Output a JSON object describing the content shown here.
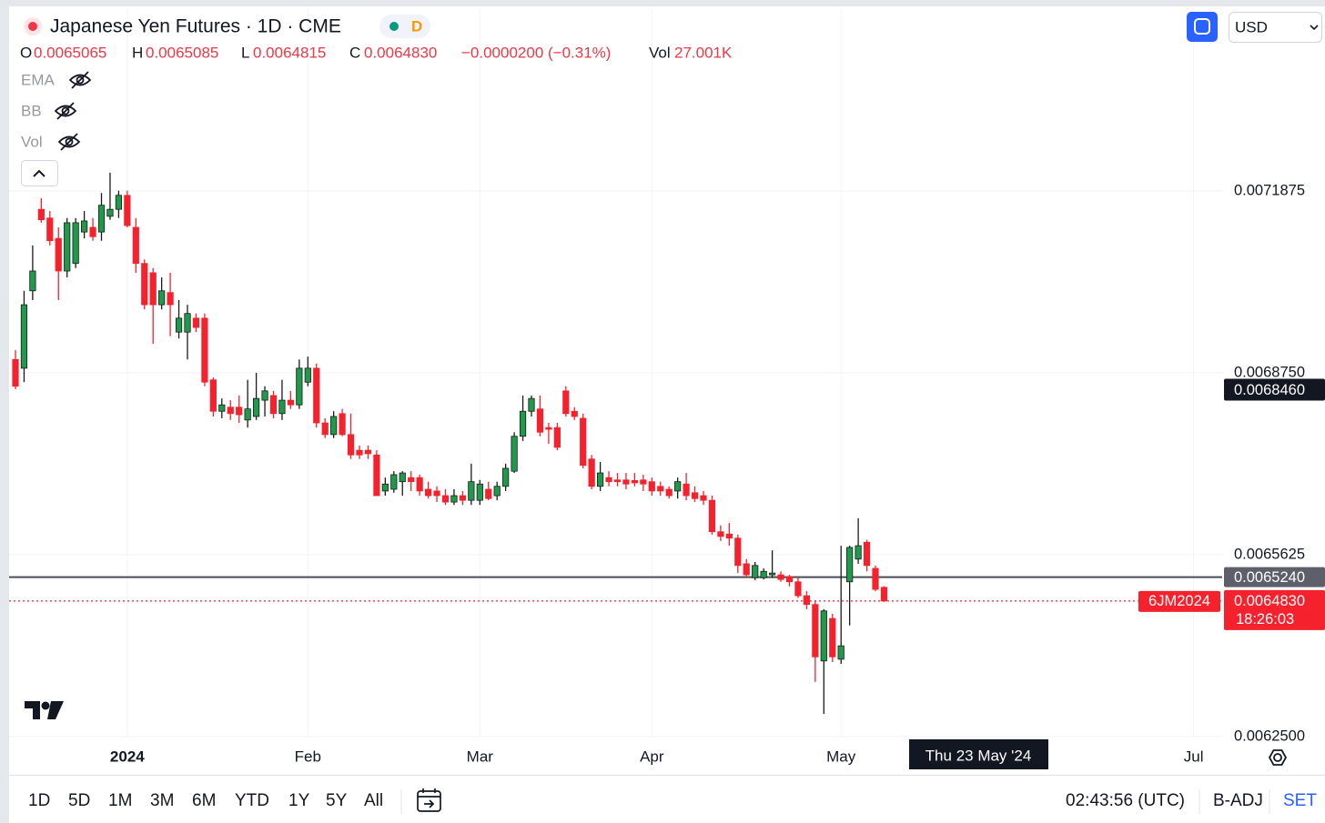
{
  "header": {
    "title": "Japanese Yen Futures · 1D · CME",
    "badge": "D",
    "legend": [
      {
        "label": "O",
        "value": "0.0065065"
      },
      {
        "label": "H",
        "value": "0.0065085"
      },
      {
        "label": "L",
        "value": "0.0064815"
      },
      {
        "label": "C",
        "value": "0.0064830"
      }
    ],
    "change": "−0.0000200 (−0.31%)",
    "volume": {
      "label": "Vol",
      "value": "27.001K"
    },
    "indicators": [
      "EMA",
      "BB",
      "Vol"
    ],
    "currency": "USD"
  },
  "chart_data": {
    "type": "candlestick",
    "categories": [
      null,
      null,
      null,
      null,
      null,
      null,
      null,
      null,
      null,
      null,
      null,
      null,
      null,
      "2024",
      null,
      null,
      null,
      null,
      null,
      null,
      null,
      null,
      null,
      null,
      null,
      null,
      null,
      null,
      null,
      null,
      null,
      null,
      null,
      null,
      "Feb",
      null,
      null,
      null,
      null,
      null,
      null,
      null,
      null,
      null,
      null,
      null,
      null,
      null,
      null,
      null,
      null,
      null,
      null,
      null,
      "Mar",
      null,
      null,
      null,
      null,
      null,
      null,
      null,
      null,
      null,
      null,
      null,
      null,
      null,
      null,
      null,
      null,
      null,
      null,
      null,
      "Apr",
      null,
      null,
      null,
      null,
      null,
      null,
      null,
      null,
      null,
      null,
      null,
      null,
      null,
      null,
      null,
      null,
      null,
      null,
      null,
      null,
      null,
      "May",
      null,
      null,
      null,
      null,
      null,
      null,
      null,
      null,
      null,
      null,
      null,
      null,
      null,
      null,
      null,
      null,
      null,
      null,
      null,
      null,
      null,
      null,
      null,
      null,
      null,
      null,
      null,
      null,
      null,
      null,
      null,
      null,
      null,
      null,
      null,
      null,
      null,
      null,
      null,
      null,
      "Jul",
      null,
      null,
      null
    ],
    "open": [
      0.006898,
      0.006883,
      0.007016,
      0.007156,
      0.007141,
      0.007106,
      0.00705,
      0.007063,
      0.007117,
      0.007125,
      0.007117,
      0.007144,
      0.007156,
      0.00718,
      0.007125,
      0.007063,
      0.007047,
      0.006992,
      0.007013,
      0.006945,
      0.006945,
      0.006969,
      0.006969,
      0.006863,
      0.006809,
      0.006816,
      0.006816,
      0.006794,
      0.0068,
      0.006828,
      0.006836,
      0.006805,
      0.006828,
      0.00682,
      0.006859,
      0.006883,
      0.006789,
      0.006769,
      0.006805,
      0.006769,
      0.006742,
      0.006742,
      0.006734,
      0.006672,
      0.006675,
      0.006688,
      0.006695,
      0.006695,
      0.006675,
      0.006672,
      0.006664,
      0.006653,
      0.006664,
      0.006656,
      0.006656,
      0.006675,
      0.006664,
      0.00668,
      0.006706,
      0.006766,
      0.006809,
      0.006813,
      0.006781,
      0.006781,
      0.006844,
      0.006809,
      0.006797,
      0.006727,
      0.00668,
      0.006695,
      0.006691,
      0.006691,
      0.00669,
      0.006691,
      0.006688,
      0.00668,
      0.006675,
      0.006672,
      0.006684,
      0.006669,
      0.006664,
      0.006656,
      0.006602,
      0.006598,
      0.006591,
      0.006547,
      0.006523,
      0.006523,
      0.006528,
      0.006528,
      0.006525,
      0.006516,
      0.006492,
      0.006477,
      0.00638,
      0.006453,
      0.006383,
      0.006516,
      0.006555,
      0.006584,
      0.006539,
      0.0065065,
      null,
      null,
      null,
      null,
      null,
      null,
      null,
      null,
      null,
      null,
      null,
      null,
      null,
      null,
      null,
      null,
      null,
      null,
      null,
      null,
      null,
      null,
      null,
      null,
      null,
      null,
      null,
      null,
      null,
      null,
      null,
      null,
      null,
      null,
      null,
      null,
      null,
      null,
      null
    ],
    "high": [
      0.006914,
      0.007016,
      0.007094,
      0.007175,
      0.007153,
      0.007125,
      0.007141,
      0.007141,
      0.007153,
      0.007141,
      0.007184,
      0.007219,
      0.007188,
      0.007188,
      0.007141,
      0.00707,
      0.007055,
      0.007039,
      0.007047,
      0.007,
      0.006992,
      0.006977,
      0.006977,
      0.006867,
      0.006831,
      0.006828,
      0.006836,
      0.006863,
      0.006875,
      0.006852,
      0.006844,
      0.006863,
      0.006844,
      0.006898,
      0.006903,
      0.006891,
      0.006797,
      0.006809,
      0.006813,
      0.006805,
      0.00675,
      0.00675,
      0.006742,
      0.006695,
      0.006706,
      0.006706,
      0.006706,
      0.0067,
      0.006688,
      0.00668,
      0.006675,
      0.006675,
      0.006672,
      0.006719,
      0.006691,
      0.006688,
      0.006688,
      0.006719,
      0.006773,
      0.006836,
      0.006836,
      0.006836,
      0.006789,
      0.006789,
      0.006852,
      0.006816,
      0.006805,
      0.006734,
      0.006722,
      0.006706,
      0.006703,
      0.006703,
      0.006703,
      0.0067,
      0.006695,
      0.006688,
      0.00668,
      0.006695,
      0.006703,
      0.00668,
      0.006672,
      0.006664,
      0.006613,
      0.006617,
      0.006597,
      0.006555,
      0.00655,
      0.006539,
      0.00657,
      0.006534,
      0.006528,
      0.006523,
      0.0065,
      0.006484,
      0.006469,
      0.006461,
      0.006578,
      0.006578,
      0.006625,
      0.006588,
      0.006544,
      0.0065085,
      null,
      null,
      null,
      null,
      null,
      null,
      null,
      null,
      null,
      null,
      null,
      null,
      null,
      null,
      null,
      null,
      null,
      null,
      null,
      null,
      null,
      null,
      null,
      null,
      null,
      null,
      null,
      null,
      null,
      null,
      null,
      null,
      null,
      null,
      null,
      null,
      null,
      null,
      null
    ],
    "low": [
      0.006847,
      0.006859,
      0.007,
      0.007133,
      0.007094,
      0.007,
      0.007039,
      0.007055,
      0.007106,
      0.007102,
      0.007102,
      0.007138,
      0.007141,
      0.007125,
      0.007047,
      0.006984,
      0.006925,
      0.006984,
      0.006938,
      0.006934,
      0.006898,
      0.006945,
      0.006852,
      0.0068,
      0.006797,
      0.006794,
      0.006789,
      0.006781,
      0.006794,
      0.0068,
      0.006797,
      0.006794,
      0.006813,
      0.006813,
      0.006852,
      0.006781,
      0.006763,
      0.006763,
      0.006766,
      0.006727,
      0.006727,
      0.006727,
      0.006664,
      0.006664,
      0.006669,
      0.006664,
      0.006672,
      0.006664,
      0.006659,
      0.006653,
      0.006648,
      0.006648,
      0.006648,
      0.006648,
      0.006648,
      0.006656,
      0.006656,
      0.006672,
      0.006703,
      0.006758,
      0.0068,
      0.006766,
      0.006753,
      0.006742,
      0.0068,
      0.006794,
      0.006711,
      0.006675,
      0.006672,
      0.00668,
      0.00668,
      0.006675,
      0.00668,
      0.006672,
      0.006664,
      0.006664,
      0.006659,
      0.006659,
      0.006656,
      0.006653,
      0.006648,
      0.006597,
      0.006586,
      0.006578,
      0.006531,
      0.006523,
      0.006519,
      0.00652,
      0.006523,
      0.006516,
      0.006508,
      0.006488,
      0.006469,
      0.006344,
      0.006289,
      0.006378,
      0.006375,
      0.006441,
      0.006547,
      0.006534,
      0.0065,
      0.0064815,
      null,
      null,
      null,
      null,
      null,
      null,
      null,
      null,
      null,
      null,
      null,
      null,
      null,
      null,
      null,
      null,
      null,
      null,
      null,
      null,
      null,
      null,
      null,
      null,
      null,
      null,
      null,
      null,
      null,
      null,
      null,
      null,
      null,
      null,
      null,
      null,
      null,
      null,
      null
    ],
    "close": [
      0.006852,
      0.006992,
      0.00705,
      0.007138,
      0.007102,
      0.00705,
      0.007133,
      0.007133,
      0.007136,
      0.007109,
      0.007163,
      0.007156,
      0.00718,
      0.007128,
      0.007063,
      0.006992,
      0.006992,
      0.007016,
      0.006992,
      0.006969,
      0.006977,
      0.006953,
      0.006859,
      0.006809,
      0.00682,
      0.006805,
      0.006803,
      0.006813,
      0.006831,
      0.006844,
      0.006805,
      0.006828,
      0.00682,
      0.006883,
      0.006883,
      0.006789,
      0.006769,
      0.0068,
      0.006769,
      0.006734,
      0.006734,
      0.006736,
      0.006664,
      0.006684,
      0.0067,
      0.006703,
      0.006688,
      0.006672,
      0.006664,
      0.006664,
      0.006653,
      0.006664,
      0.006656,
      0.006688,
      0.006684,
      0.006659,
      0.00668,
      0.006711,
      0.006766,
      0.006809,
      0.006831,
      0.006773,
      0.006778,
      0.006747,
      0.006805,
      0.0068,
      0.006716,
      0.00668,
      0.006703,
      0.006688,
      0.006688,
      0.006684,
      0.006686,
      0.006684,
      0.006672,
      0.006672,
      0.006664,
      0.006688,
      0.006664,
      0.006659,
      0.006656,
      0.006602,
      0.006594,
      0.006591,
      0.006544,
      0.006528,
      0.006544,
      0.006534,
      0.006531,
      0.00652,
      0.006516,
      0.006492,
      0.006477,
      0.006387,
      0.006466,
      0.006387,
      0.006406,
      0.006575,
      0.006578,
      0.006544,
      0.006503,
      0.006483,
      null,
      null,
      null,
      null,
      null,
      null,
      null,
      null,
      null,
      null,
      null,
      null,
      null,
      null,
      null,
      null,
      null,
      null,
      null,
      null,
      null,
      null,
      null,
      null,
      null,
      null,
      null,
      null,
      null,
      null,
      null,
      null,
      null,
      null,
      null,
      null,
      null,
      null,
      null
    ],
    "up_color": "#1f9a4b",
    "down_color": "#f5222d",
    "ylim": [
      0.00625,
      0.0075
    ],
    "yticks": [
      {
        "value": 0.00625,
        "label": "0.0062500"
      },
      0.0065625,
      {
        "value": 0.006875,
        "label": "0.0068750"
      },
      0.0071875
    ],
    "grid": true,
    "price_lines": [
      {
        "value": 0.006524,
        "label": "0.0065240",
        "color": "#4a4c55",
        "style": "solid"
      },
      {
        "value": 0.006483,
        "label": "0.0064830",
        "color": "#f5222d",
        "style": "dotted",
        "symbol": "6JM2024",
        "countdown": "18:26:03"
      }
    ],
    "crosshair": {
      "price": {
        "value": 0.006846,
        "label": "0.0068460"
      },
      "date": "Thu 23 May '24"
    }
  },
  "footer": {
    "ranges": [
      "1D",
      "5D",
      "1M",
      "3M",
      "6M",
      "YTD",
      "1Y",
      "5Y",
      "All"
    ],
    "clock": "02:43:56 (UTC)",
    "adjust": "B-ADJ",
    "settlement": "SET"
  }
}
